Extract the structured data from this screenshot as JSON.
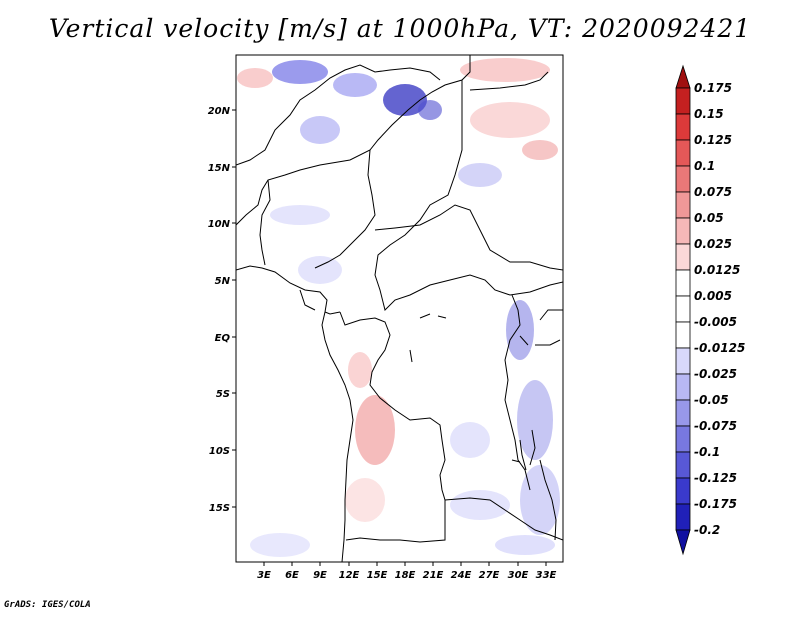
{
  "title": "Vertical velocity [m/s] at 1000hPa, VT: 2020092421",
  "credit": "GrADS: IGES/COLA",
  "map": {
    "lat_labels": [
      "20N",
      "15N",
      "10N",
      "5N",
      "EQ",
      "5S",
      "10S",
      "15S"
    ],
    "lon_labels": [
      "3E",
      "6E",
      "9E",
      "12E",
      "15E",
      "18E",
      "21E",
      "24E",
      "27E",
      "30E",
      "33E"
    ]
  },
  "colorbar": {
    "labels": [
      "0.175",
      "0.15",
      "0.125",
      "0.1",
      "0.075",
      "0.05",
      "0.025",
      "0.0125",
      "0.005",
      "-0.005",
      "-0.0125",
      "-0.025",
      "-0.05",
      "-0.075",
      "-0.1",
      "-0.125",
      "-0.175",
      "-0.2"
    ],
    "colors": [
      "#a01010",
      "#c42020",
      "#dc3a3a",
      "#e45858",
      "#ea7878",
      "#f09898",
      "#f6b8b8",
      "#fbd8d8",
      "#ffffff",
      "#ffffff",
      "#d8d8fb",
      "#b8b8f4",
      "#9898ea",
      "#7878e0",
      "#5858d6",
      "#3a3acc",
      "#2020b8",
      "#1010a0"
    ]
  }
}
